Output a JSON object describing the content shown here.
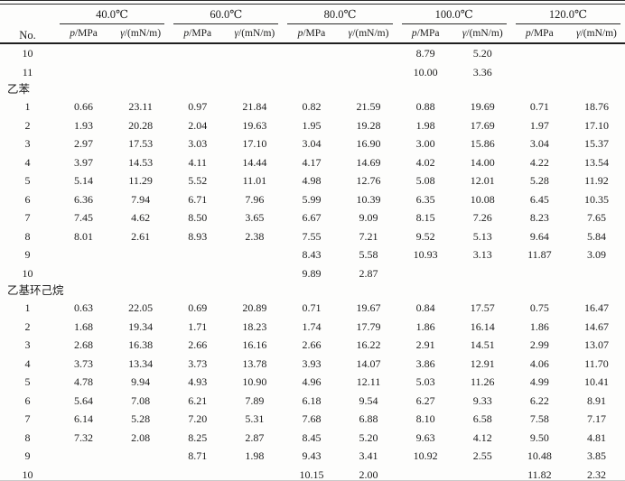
{
  "table": {
    "no_header": "No.",
    "temp_groups": [
      "40.0℃",
      "60.0℃",
      "80.0℃",
      "100.0℃",
      "120.0℃"
    ],
    "sub_p": {
      "sym": "p",
      "rest": "/MPa"
    },
    "sub_gamma": {
      "sym": "γ",
      "rest": "/(mN/m)"
    },
    "colors": {
      "text": "#1c1c1c",
      "rule": "#2a2a2a",
      "faint_bottom_rule": "#c9c9c9"
    },
    "rows": [
      {
        "no": "10",
        "v": [
          "",
          "",
          "",
          "",
          "",
          "",
          "8.79",
          "5.20",
          "",
          ""
        ]
      },
      {
        "no": "11",
        "v": [
          "",
          "",
          "",
          "",
          "",
          "",
          "10.00",
          "3.36",
          "",
          ""
        ]
      },
      {
        "section": "乙苯"
      },
      {
        "no": "1",
        "v": [
          "0.66",
          "23.11",
          "0.97",
          "21.84",
          "0.82",
          "21.59",
          "0.88",
          "19.69",
          "0.71",
          "18.76"
        ]
      },
      {
        "no": "2",
        "v": [
          "1.93",
          "20.28",
          "2.04",
          "19.63",
          "1.95",
          "19.28",
          "1.98",
          "17.69",
          "1.97",
          "17.10"
        ]
      },
      {
        "no": "3",
        "v": [
          "2.97",
          "17.53",
          "3.03",
          "17.10",
          "3.04",
          "16.90",
          "3.00",
          "15.86",
          "3.04",
          "15.37"
        ]
      },
      {
        "no": "4",
        "v": [
          "3.97",
          "14.53",
          "4.11",
          "14.44",
          "4.17",
          "14.69",
          "4.02",
          "14.00",
          "4.22",
          "13.54"
        ]
      },
      {
        "no": "5",
        "v": [
          "5.14",
          "11.29",
          "5.52",
          "11.01",
          "4.98",
          "12.76",
          "5.08",
          "12.01",
          "5.28",
          "11.92"
        ]
      },
      {
        "no": "6",
        "v": [
          "6.36",
          "7.94",
          "6.71",
          "7.96",
          "5.99",
          "10.39",
          "6.35",
          "10.08",
          "6.45",
          "10.35"
        ]
      },
      {
        "no": "7",
        "v": [
          "7.45",
          "4.62",
          "8.50",
          "3.65",
          "6.67",
          "9.09",
          "8.15",
          "7.26",
          "8.23",
          "7.65"
        ]
      },
      {
        "no": "8",
        "v": [
          "8.01",
          "2.61",
          "8.93",
          "2.38",
          "7.55",
          "7.21",
          "9.52",
          "5.13",
          "9.64",
          "5.84"
        ]
      },
      {
        "no": "9",
        "v": [
          "",
          "",
          "",
          "",
          "8.43",
          "5.58",
          "10.93",
          "3.13",
          "11.87",
          "3.09"
        ]
      },
      {
        "no": "10",
        "v": [
          "",
          "",
          "",
          "",
          "9.89",
          "2.87",
          "",
          "",
          "",
          ""
        ]
      },
      {
        "section": "乙基环己烷"
      },
      {
        "no": "1",
        "v": [
          "0.63",
          "22.05",
          "0.69",
          "20.89",
          "0.71",
          "19.67",
          "0.84",
          "17.57",
          "0.75",
          "16.47"
        ]
      },
      {
        "no": "2",
        "v": [
          "1.68",
          "19.34",
          "1.71",
          "18.23",
          "1.74",
          "17.79",
          "1.86",
          "16.14",
          "1.86",
          "14.67"
        ]
      },
      {
        "no": "3",
        "v": [
          "2.68",
          "16.38",
          "2.66",
          "16.16",
          "2.66",
          "16.22",
          "2.91",
          "14.51",
          "2.99",
          "13.07"
        ]
      },
      {
        "no": "4",
        "v": [
          "3.73",
          "13.34",
          "3.73",
          "13.78",
          "3.93",
          "14.07",
          "3.86",
          "12.91",
          "4.06",
          "11.70"
        ]
      },
      {
        "no": "5",
        "v": [
          "4.78",
          "9.94",
          "4.93",
          "10.90",
          "4.96",
          "12.11",
          "5.03",
          "11.26",
          "4.99",
          "10.41"
        ]
      },
      {
        "no": "6",
        "v": [
          "5.64",
          "7.08",
          "6.21",
          "7.89",
          "6.18",
          "9.54",
          "6.27",
          "9.33",
          "6.22",
          "8.91"
        ]
      },
      {
        "no": "7",
        "v": [
          "6.14",
          "5.28",
          "7.20",
          "5.31",
          "7.68",
          "6.88",
          "8.10",
          "6.58",
          "7.58",
          "7.17"
        ]
      },
      {
        "no": "8",
        "v": [
          "7.32",
          "2.08",
          "8.25",
          "2.87",
          "8.45",
          "5.20",
          "9.63",
          "4.12",
          "9.50",
          "4.81"
        ]
      },
      {
        "no": "9",
        "v": [
          "",
          "",
          "8.71",
          "1.98",
          "9.43",
          "3.41",
          "10.92",
          "2.55",
          "10.48",
          "3.85"
        ]
      },
      {
        "no": "10",
        "v": [
          "",
          "",
          "",
          "",
          "10.15",
          "2.00",
          "",
          "",
          "11.82",
          "2.32"
        ]
      }
    ]
  }
}
